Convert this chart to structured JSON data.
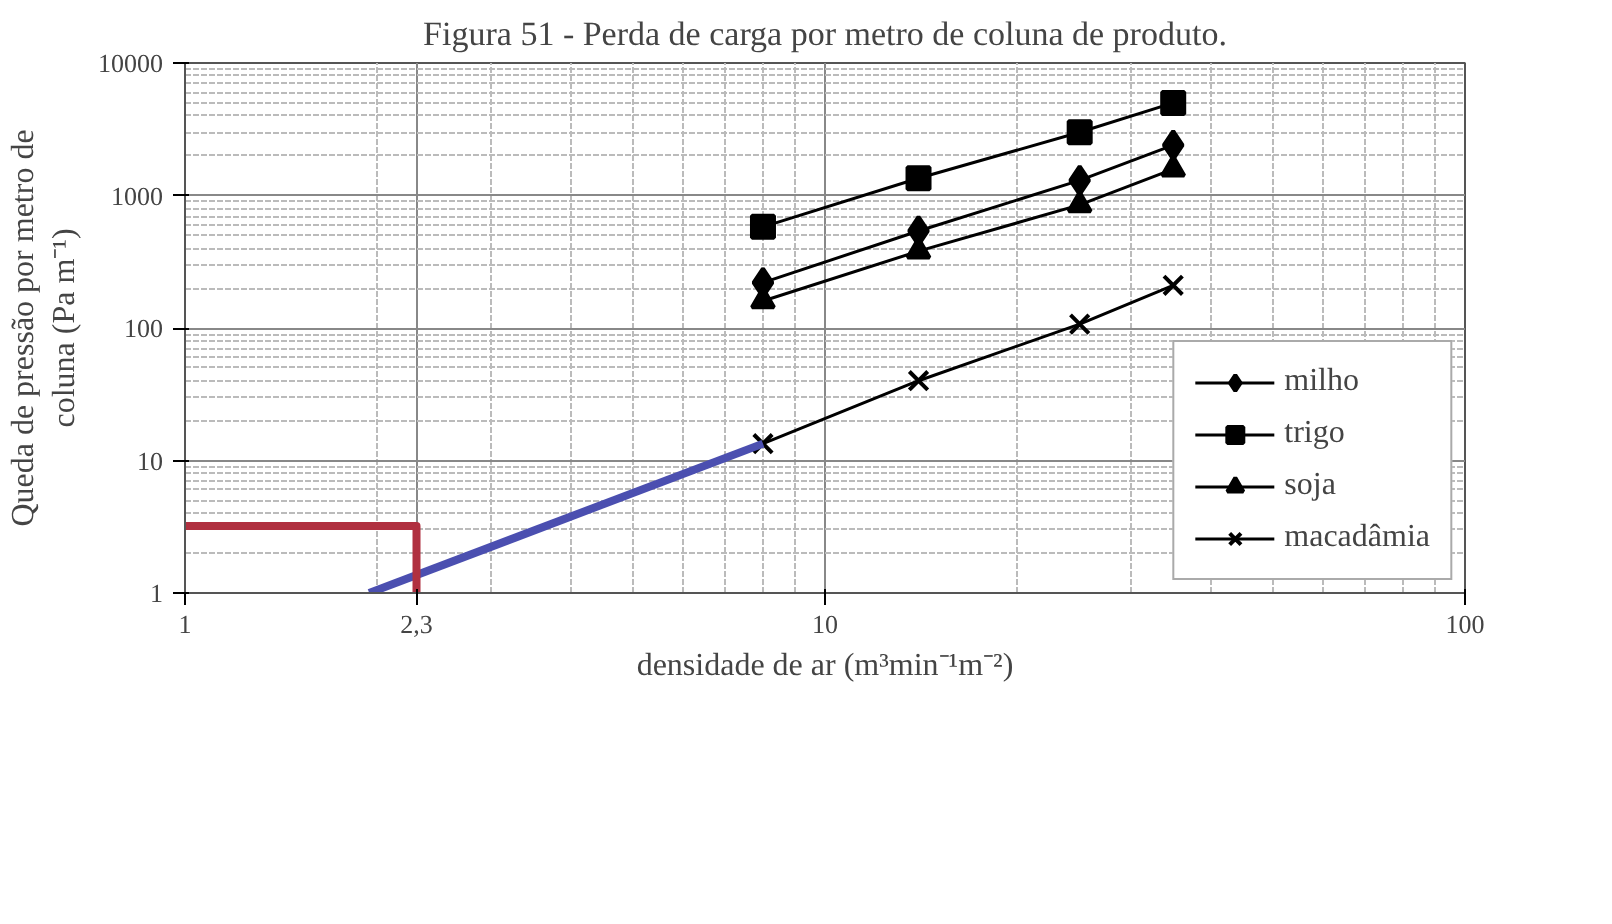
{
  "chart_data": {
    "type": "line",
    "title": "Figura 51 - Perda de carga por metro de coluna de produto.",
    "xlabel": "densidade de ar (m³min⁻¹m⁻²)",
    "ylabel": "Queda de pressão por metro de\ncoluna (Pa m⁻¹)",
    "log": "xy",
    "xlim": [
      1,
      100
    ],
    "ylim": [
      1,
      10000
    ],
    "xticks": [
      1,
      {
        "value": 2.3,
        "label": "2,3"
      },
      10,
      100
    ],
    "yticks": [
      1,
      10,
      100,
      1000,
      10000
    ],
    "x": [
      8,
      14,
      25,
      35
    ],
    "series": [
      {
        "name": "milho",
        "color": "#000000",
        "marker": "diamond",
        "values": [
          220,
          540,
          1300,
          2400
        ]
      },
      {
        "name": "trigo",
        "color": "#000000",
        "marker": "square",
        "values": [
          580,
          1350,
          3000,
          5000
        ]
      },
      {
        "name": "soja",
        "color": "#000000",
        "marker": "triangle",
        "values": [
          160,
          380,
          850,
          1580
        ]
      },
      {
        "name": "macadâmia",
        "color": "#000000",
        "marker": "cross",
        "values": [
          13.4,
          40,
          107,
          210
        ]
      },
      {
        "color": "#4b4fb0",
        "marker": "none",
        "x": [
          1.94,
          8
        ],
        "values": [
          1,
          13.4
        ]
      },
      {
        "color": "#b03040",
        "marker": "none",
        "x": [
          1,
          2.3,
          2.3
        ],
        "values": [
          3.2,
          3.2,
          1
        ]
      }
    ],
    "grid": true,
    "legend": "bottom right"
  }
}
